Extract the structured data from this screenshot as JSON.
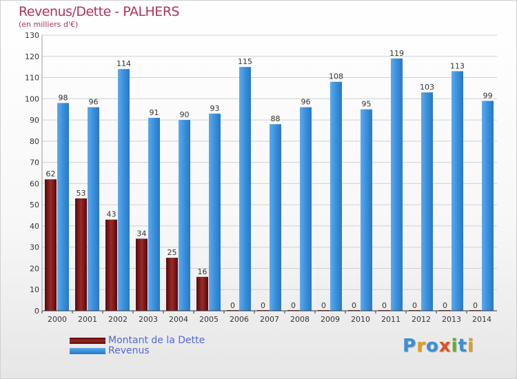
{
  "chart_data": {
    "type": "bar",
    "title": "Revenus/Dette - PALHERS",
    "subtitle": "(en milliers d'€)",
    "xlabel": "",
    "ylabel": "",
    "ylim": [
      0,
      130
    ],
    "yticks": [
      0,
      10,
      20,
      30,
      40,
      50,
      60,
      70,
      80,
      90,
      100,
      110,
      120,
      130
    ],
    "grid": true,
    "categories": [
      "2000",
      "2001",
      "2002",
      "2003",
      "2004",
      "2005",
      "2006",
      "2007",
      "2008",
      "2009",
      "2010",
      "2011",
      "2012",
      "2013",
      "2014"
    ],
    "series": [
      {
        "name": "Montant de la Dette",
        "color": "#7a1a1a",
        "values": [
          62,
          53,
          43,
          34,
          25,
          16,
          0,
          0,
          0,
          0,
          0,
          0,
          0,
          0,
          0
        ]
      },
      {
        "name": "Revenus",
        "color": "#3a8fd8",
        "values": [
          98,
          96,
          114,
          91,
          90,
          93,
          115,
          88,
          96,
          108,
          95,
          119,
          103,
          113,
          99
        ]
      }
    ],
    "legend_position": "bottom-left"
  },
  "logo": {
    "letters": [
      "P",
      "r",
      "o",
      "x",
      "i",
      "t",
      "i"
    ],
    "colors": [
      "#3a8fd8",
      "#e0a020",
      "#3a8fd8",
      "#e05020",
      "#60b030",
      "#3a8fd8",
      "#e0a020"
    ]
  }
}
